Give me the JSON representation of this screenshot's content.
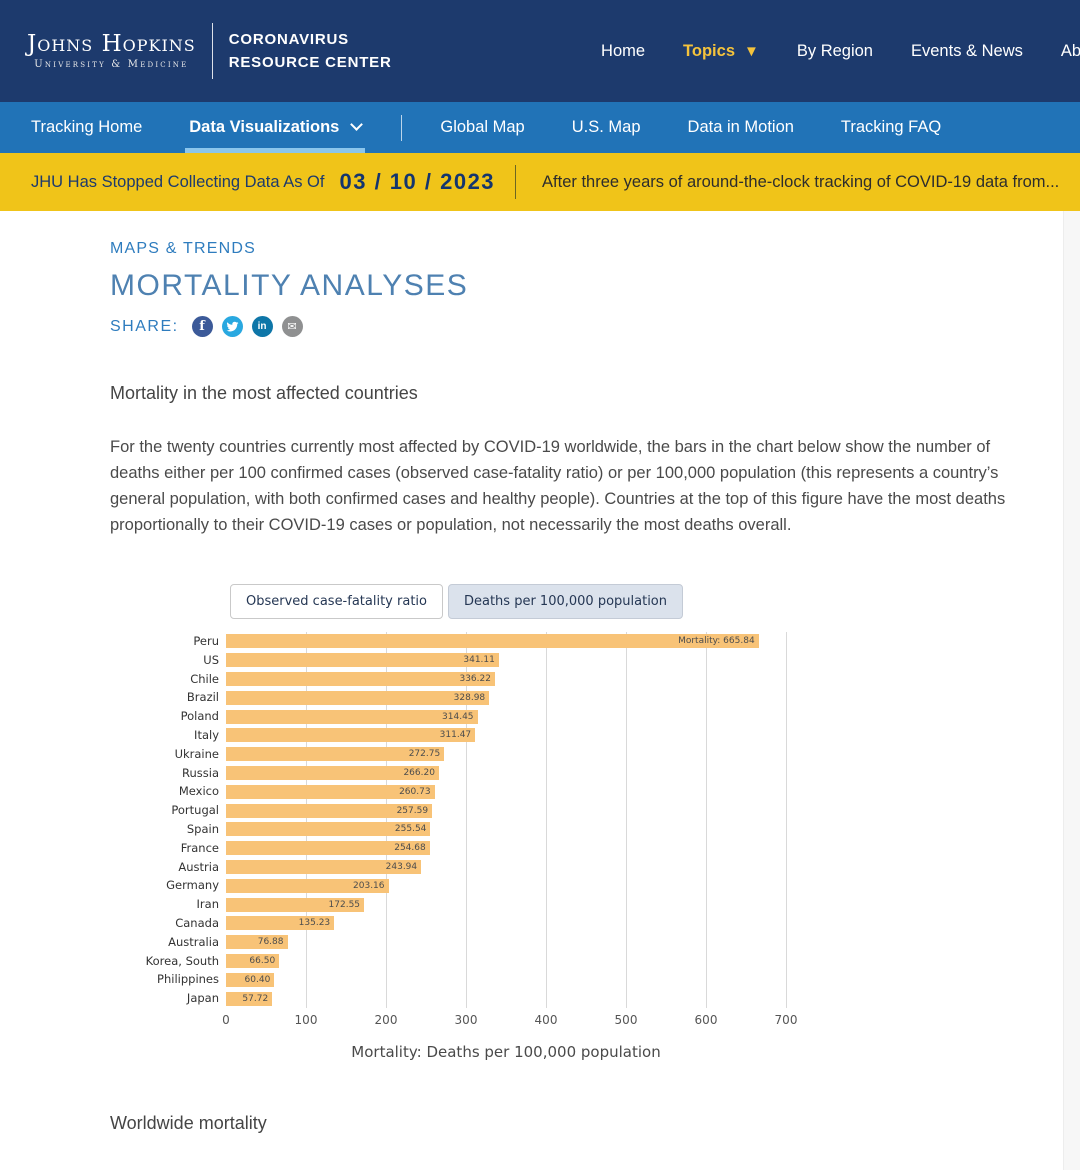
{
  "colors": {
    "navy": "#1D3A6D",
    "subnav_blue": "#2173B7",
    "underline_blue": "#8BC6EC",
    "banner_yellow": "#F0C419",
    "gold": "#F5C33C",
    "link_blue": "#2E7CBE",
    "title_blue": "#4E81B1",
    "bar_orange": "#F8C377"
  },
  "header": {
    "logo_line1": "Johns Hopkins",
    "logo_line2": "University & Medicine",
    "site_title_line1": "CORONAVIRUS",
    "site_title_line2": "RESOURCE CENTER",
    "dropdown_glyph": "▼",
    "nav": [
      {
        "label": "Home"
      },
      {
        "label": "Topics",
        "active": true,
        "has_dropdown": true
      },
      {
        "label": "By Region"
      },
      {
        "label": "Events & News"
      },
      {
        "label": "About"
      }
    ]
  },
  "subnav": {
    "items": [
      {
        "label": "Tracking Home"
      },
      {
        "label": "Data Visualizations",
        "active": true,
        "has_dropdown": true
      },
      {
        "label": "Global Map"
      },
      {
        "label": "U.S. Map"
      },
      {
        "label": "Data in Motion"
      },
      {
        "label": "Tracking FAQ"
      }
    ]
  },
  "banner": {
    "text1": "JHU Has Stopped Collecting Data As Of",
    "date": "03 / 10 / 2023",
    "text2": "After three years of around-the-clock tracking of COVID-19 data from..."
  },
  "page": {
    "eyebrow": "MAPS & TRENDS",
    "title": "MORTALITY ANALYSES",
    "share": {
      "label": "SHARE:",
      "icons": [
        {
          "name": "facebook",
          "glyph": "f"
        },
        {
          "name": "twitter"
        },
        {
          "name": "linkedin",
          "glyph": "in"
        },
        {
          "name": "email",
          "glyph": "✉"
        }
      ]
    },
    "section1_heading": "Mortality in the most affected countries",
    "paragraph": "For the twenty countries currently most affected by COVID-19 worldwide, the bars in the chart below show the number of deaths either per 100 confirmed cases (observed case-fatality ratio) or per 100,000 population (this represents a country’s general population, with both confirmed cases and healthy people). Countries at the top of this figure have the most deaths proportionally to their COVID-19 cases or population, not necessarily the most deaths overall.",
    "section2_heading": "Worldwide mortality"
  },
  "toggle": {
    "options": [
      {
        "label": "Observed case-fatality ratio",
        "selected": false
      },
      {
        "label": "Deaths per 100,000 population",
        "selected": true
      }
    ]
  },
  "chart_data": {
    "type": "bar",
    "orientation": "horizontal",
    "xlabel": "Mortality: Deaths per 100,000 population",
    "xticks": [
      0,
      100,
      200,
      300,
      400,
      500,
      600,
      700
    ],
    "xlim": [
      0,
      700
    ],
    "grid": true,
    "legend": "none",
    "categories": [
      "Peru",
      "US",
      "Chile",
      "Brazil",
      "Poland",
      "Italy",
      "Ukraine",
      "Russia",
      "Mexico",
      "Portugal",
      "Spain",
      "France",
      "Austria",
      "Germany",
      "Iran",
      "Canada",
      "Australia",
      "Korea, South",
      "Philippines",
      "Japan"
    ],
    "values": [
      665.84,
      341.11,
      336.22,
      328.98,
      314.45,
      311.47,
      272.75,
      266.2,
      260.73,
      257.59,
      255.54,
      254.68,
      243.94,
      203.16,
      172.55,
      135.23,
      76.88,
      66.5,
      60.4,
      57.72
    ],
    "bar_labels": [
      "Mortality: 665.84",
      "341.11",
      "336.22",
      "328.98",
      "314.45",
      "311.47",
      "272.75",
      "266.20",
      "260.73",
      "257.59",
      "255.54",
      "254.68",
      "243.94",
      "203.16",
      "172.55",
      "135.23",
      "76.88",
      "66.50",
      "60.40",
      "57.72"
    ]
  }
}
